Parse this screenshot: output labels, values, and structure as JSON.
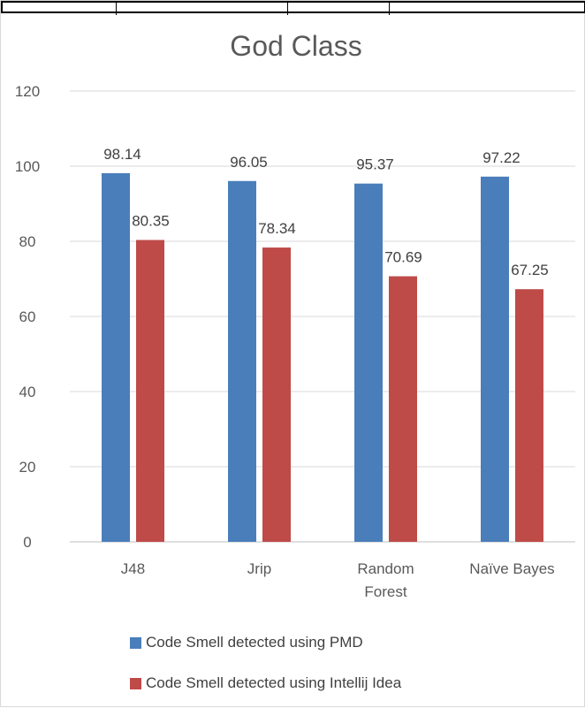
{
  "chart_data": {
    "type": "bar",
    "title": "God Class",
    "categories": [
      [
        "J48"
      ],
      [
        "Jrip"
      ],
      [
        "Random",
        "Forest"
      ],
      [
        "Naïve Bayes"
      ]
    ],
    "series": [
      {
        "name": "Code Smell detected using PMD",
        "color": "#4a7ebb",
        "values": [
          98.14,
          96.05,
          95.37,
          97.22
        ],
        "labels": [
          "98.14",
          "96.05",
          "95.37",
          "97.22"
        ]
      },
      {
        "name": "Code Smell detected using Intellij Idea",
        "color": "#be4b48",
        "values": [
          80.35,
          78.34,
          70.69,
          67.25
        ],
        "labels": [
          "80.35",
          "78.34",
          "70.69",
          "67.25"
        ]
      }
    ],
    "ylim": [
      0,
      120
    ],
    "yticks": [
      "0",
      "20",
      "40",
      "60",
      "80",
      "100",
      "120"
    ],
    "grid": true,
    "legend_position": "bottom"
  }
}
